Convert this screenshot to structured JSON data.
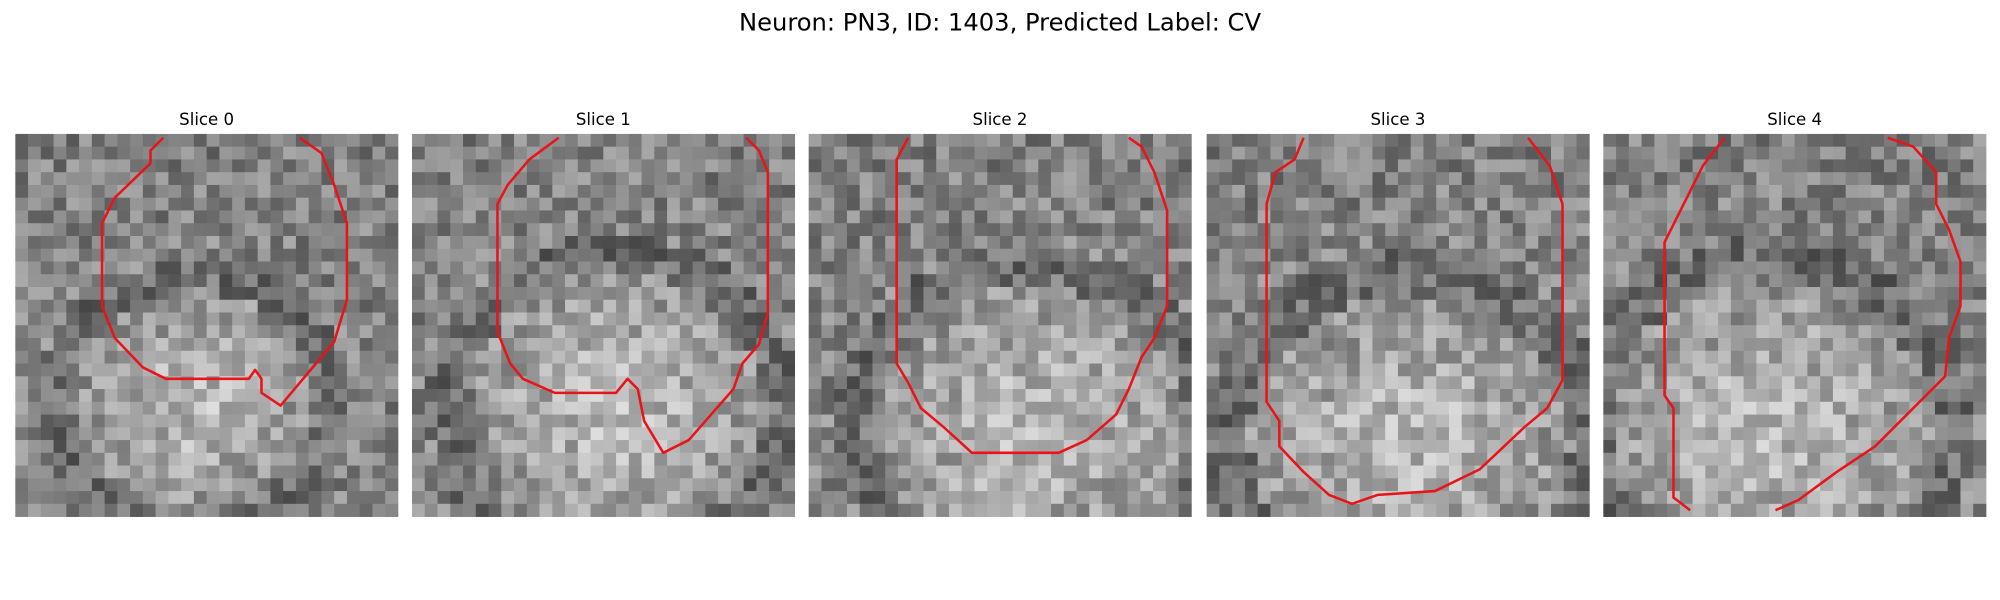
{
  "title": "Neuron: PN3, ID: 1403, Predicted Label: CV",
  "panels": [
    {
      "label": "Slice 0"
    },
    {
      "label": "Slice 1"
    },
    {
      "label": "Slice 2"
    },
    {
      "label": "Slice 3"
    },
    {
      "label": "Slice 4"
    }
  ]
}
